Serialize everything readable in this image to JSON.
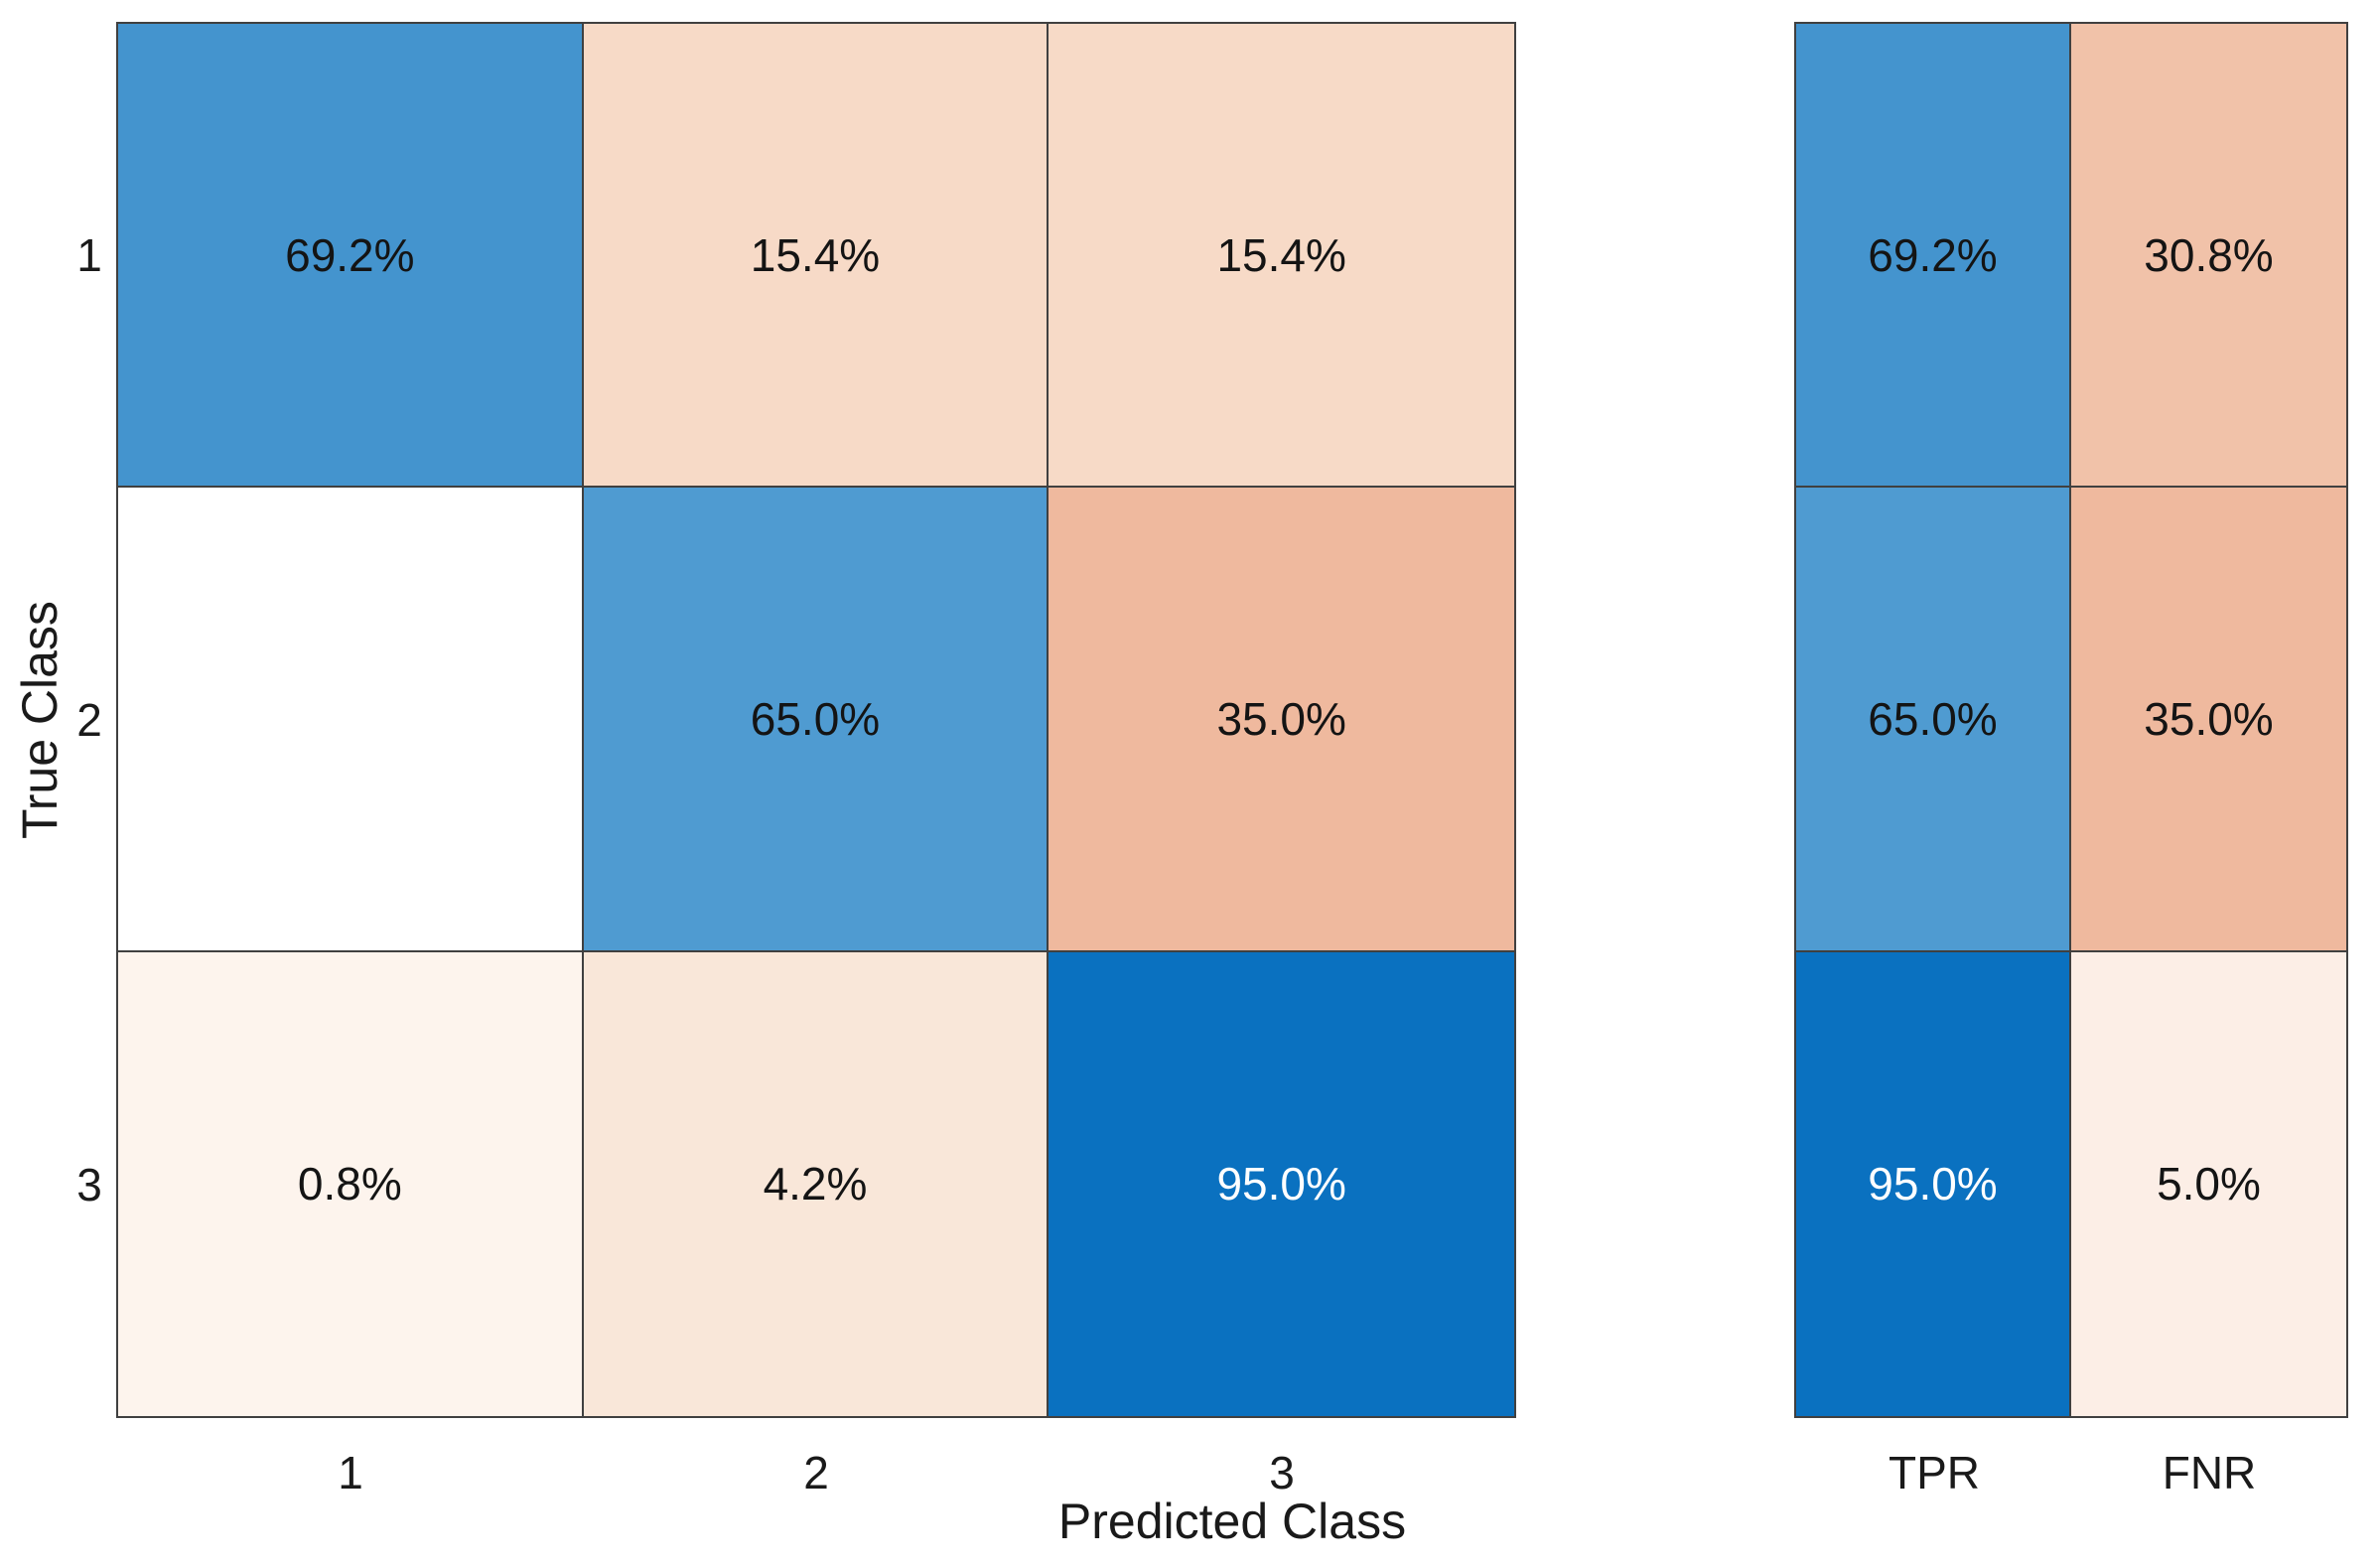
{
  "style": {
    "background": "#ffffff",
    "grid_line_color": "#404040",
    "diagonal_base_color": "#0a71c0",
    "off_diagonal_base_color": "#d95319"
  },
  "chart_data": [
    {
      "type": "heatmap",
      "name": "confusion-matrix",
      "title": "",
      "xlabel": "Predicted Class",
      "ylabel": "True Class",
      "x_tick_labels": [
        "1",
        "2",
        "3"
      ],
      "y_tick_labels": [
        "1",
        "2",
        "3"
      ],
      "normalization": "row-percent",
      "legend": "none",
      "rows": [
        {
          "true_class": "1",
          "cells": [
            {
              "label": "69.2%",
              "value": 69.2,
              "bg": "#4494ce",
              "fg": "#141414"
            },
            {
              "label": "15.4%",
              "value": 15.4,
              "bg": "#f7dac7",
              "fg": "#141414"
            },
            {
              "label": "15.4%",
              "value": 15.4,
              "bg": "#f7dac7",
              "fg": "#141414"
            }
          ]
        },
        {
          "true_class": "2",
          "cells": [
            {
              "label": "",
              "value": 0,
              "bg": "#ffffff",
              "fg": "#141414"
            },
            {
              "label": "65.0%",
              "value": 65.0,
              "bg": "#4f9bd1",
              "fg": "#141414"
            },
            {
              "label": "35.0%",
              "value": 35.0,
              "bg": "#efb99e",
              "fg": "#141414"
            }
          ]
        },
        {
          "true_class": "3",
          "cells": [
            {
              "label": "0.8%",
              "value": 0.8,
              "bg": "#fdf4ed",
              "fg": "#141414"
            },
            {
              "label": "4.2%",
              "value": 4.2,
              "bg": "#f9e7d9",
              "fg": "#141414"
            },
            {
              "label": "95.0%",
              "value": 95.0,
              "bg": "#0a71c0",
              "fg": "#ffffff"
            }
          ]
        }
      ]
    },
    {
      "type": "heatmap",
      "name": "row-summary",
      "title": "",
      "xlabel": "",
      "ylabel": "",
      "x_tick_labels": [
        "TPR",
        "FNR"
      ],
      "y_tick_labels": [
        "1",
        "2",
        "3"
      ],
      "normalization": "row-percent",
      "rows": [
        {
          "true_class": "1",
          "cells": [
            {
              "label": "69.2%",
              "value": 69.2,
              "bg": "#4494ce",
              "fg": "#141414"
            },
            {
              "label": "30.8%",
              "value": 30.8,
              "bg": "#f1c2a9",
              "fg": "#141414"
            }
          ]
        },
        {
          "true_class": "2",
          "cells": [
            {
              "label": "65.0%",
              "value": 65.0,
              "bg": "#4f9bd1",
              "fg": "#141414"
            },
            {
              "label": "35.0%",
              "value": 35.0,
              "bg": "#efb99e",
              "fg": "#141414"
            }
          ]
        },
        {
          "true_class": "3",
          "cells": [
            {
              "label": "95.0%",
              "value": 95.0,
              "bg": "#0a71c0",
              "fg": "#ffffff"
            },
            {
              "label": "5.0%",
              "value": 5.0,
              "bg": "#fceee6",
              "fg": "#141414"
            }
          ]
        }
      ]
    }
  ]
}
